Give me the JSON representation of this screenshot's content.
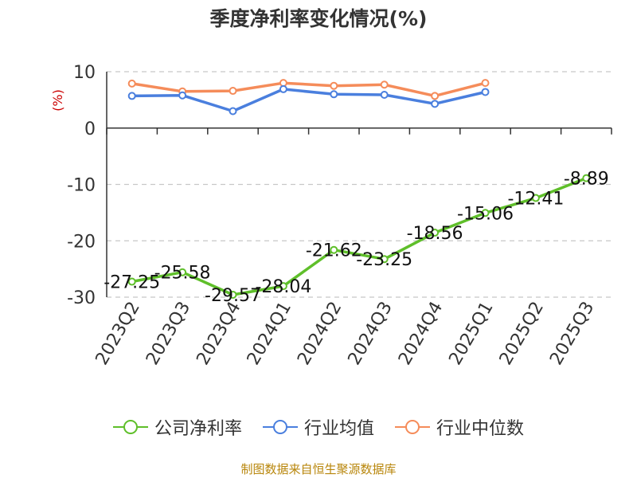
{
  "title": "季度净利率变化情况(%)",
  "source": "制图数据来自恒生聚源数据库",
  "colors": {
    "company": "#5fbf2a",
    "industry_avg": "#4a7fde",
    "industry_median": "#f58c5a",
    "unit_label": "#cc0000"
  },
  "chart_data": {
    "type": "line",
    "ylabel": "(%)",
    "ylim": [
      -30,
      10
    ],
    "yticks": [
      10,
      0,
      -10,
      -20,
      -30
    ],
    "grid": true,
    "legend_position": "bottom",
    "categories": [
      "2023Q2",
      "2023Q3",
      "2023Q4",
      "2024Q1",
      "2024Q2",
      "2024Q3",
      "2024Q4",
      "2025Q1",
      "2025Q2",
      "2025Q3"
    ],
    "series": [
      {
        "name": "公司净利率",
        "color": "#5fbf2a",
        "show_labels": true,
        "values": [
          -27.25,
          -25.58,
          -29.57,
          -28.04,
          -21.62,
          -23.25,
          -18.56,
          -15.06,
          -12.41,
          -8.89
        ],
        "labels": [
          "-27.25",
          "-25.58",
          "-29.57",
          "-28.04",
          "-21.62",
          "-23.25",
          "-18.56",
          "-15.06",
          "-12.41",
          "-8.89"
        ]
      },
      {
        "name": "行业均值",
        "color": "#4a7fde",
        "show_labels": false,
        "values": [
          5.7,
          5.8,
          3.0,
          6.9,
          6.0,
          5.9,
          4.3,
          6.4,
          null,
          null
        ]
      },
      {
        "name": "行业中位数",
        "color": "#f58c5a",
        "show_labels": false,
        "values": [
          7.9,
          6.5,
          6.6,
          8.0,
          7.5,
          7.7,
          5.7,
          8.0,
          null,
          null
        ]
      }
    ]
  }
}
